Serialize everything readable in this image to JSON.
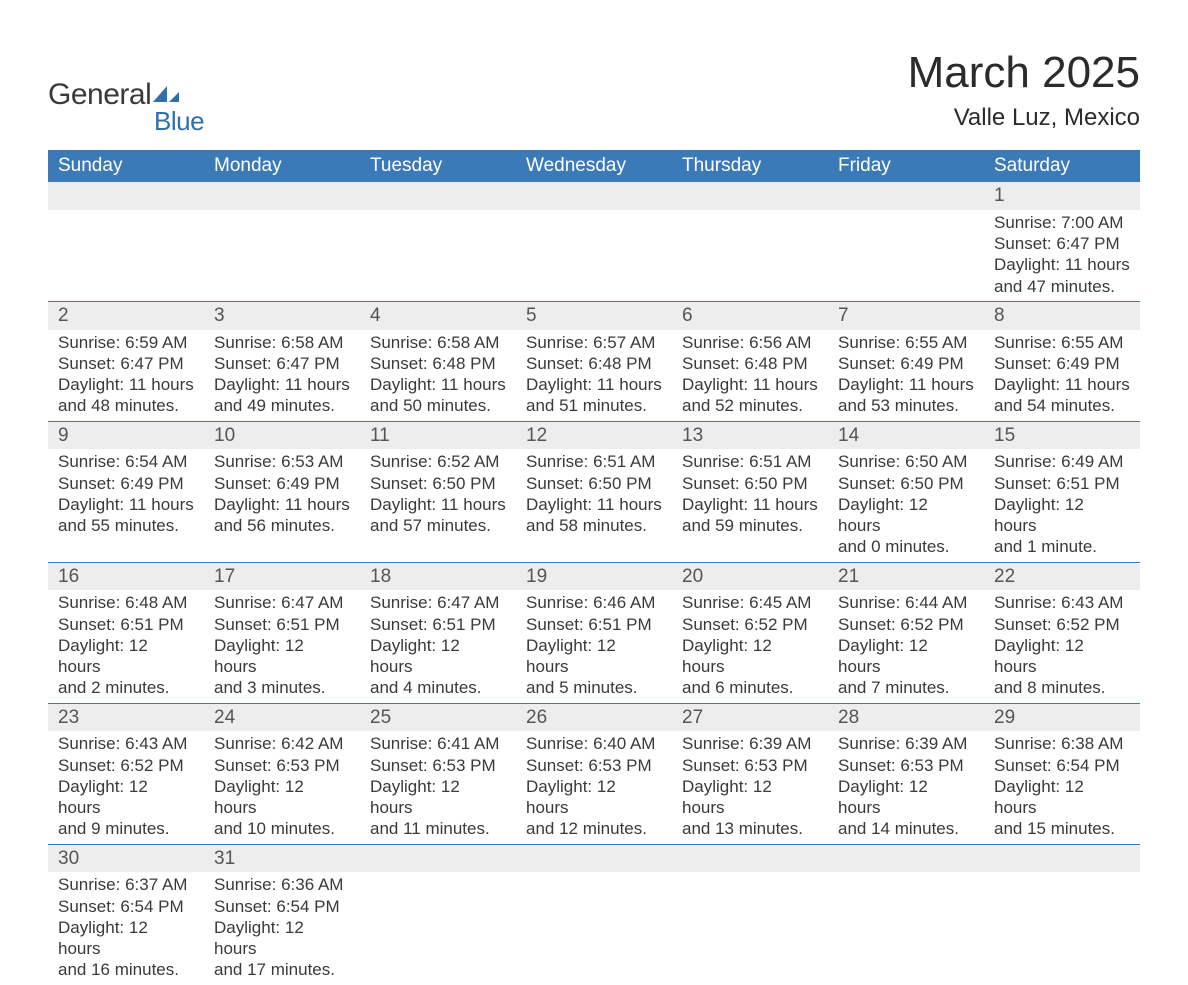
{
  "logo": {
    "text1": "General",
    "text2": "Blue",
    "flag_color": "#2f6fae"
  },
  "title": "March 2025",
  "location": "Valle Luz, Mexico",
  "header_bg": "#3a7ab8",
  "stripe_bg": "#ededed",
  "text_color": "#3a3a3a",
  "day_headers": [
    "Sunday",
    "Monday",
    "Tuesday",
    "Wednesday",
    "Thursday",
    "Friday",
    "Saturday"
  ],
  "weeks": [
    {
      "days": [
        {
          "n": "",
          "lines": [
            "",
            "",
            "",
            ""
          ]
        },
        {
          "n": "",
          "lines": [
            "",
            "",
            "",
            ""
          ]
        },
        {
          "n": "",
          "lines": [
            "",
            "",
            "",
            ""
          ]
        },
        {
          "n": "",
          "lines": [
            "",
            "",
            "",
            ""
          ]
        },
        {
          "n": "",
          "lines": [
            "",
            "",
            "",
            ""
          ]
        },
        {
          "n": "",
          "lines": [
            "",
            "",
            "",
            ""
          ]
        },
        {
          "n": "1",
          "lines": [
            "Sunrise: 7:00 AM",
            "Sunset: 6:47 PM",
            "Daylight: 11 hours",
            "and 47 minutes."
          ]
        }
      ]
    },
    {
      "days": [
        {
          "n": "2",
          "lines": [
            "Sunrise: 6:59 AM",
            "Sunset: 6:47 PM",
            "Daylight: 11 hours",
            "and 48 minutes."
          ]
        },
        {
          "n": "3",
          "lines": [
            "Sunrise: 6:58 AM",
            "Sunset: 6:47 PM",
            "Daylight: 11 hours",
            "and 49 minutes."
          ]
        },
        {
          "n": "4",
          "lines": [
            "Sunrise: 6:58 AM",
            "Sunset: 6:48 PM",
            "Daylight: 11 hours",
            "and 50 minutes."
          ]
        },
        {
          "n": "5",
          "lines": [
            "Sunrise: 6:57 AM",
            "Sunset: 6:48 PM",
            "Daylight: 11 hours",
            "and 51 minutes."
          ]
        },
        {
          "n": "6",
          "lines": [
            "Sunrise: 6:56 AM",
            "Sunset: 6:48 PM",
            "Daylight: 11 hours",
            "and 52 minutes."
          ]
        },
        {
          "n": "7",
          "lines": [
            "Sunrise: 6:55 AM",
            "Sunset: 6:49 PM",
            "Daylight: 11 hours",
            "and 53 minutes."
          ]
        },
        {
          "n": "8",
          "lines": [
            "Sunrise: 6:55 AM",
            "Sunset: 6:49 PM",
            "Daylight: 11 hours",
            "and 54 minutes."
          ]
        }
      ]
    },
    {
      "days": [
        {
          "n": "9",
          "lines": [
            "Sunrise: 6:54 AM",
            "Sunset: 6:49 PM",
            "Daylight: 11 hours",
            "and 55 minutes."
          ]
        },
        {
          "n": "10",
          "lines": [
            "Sunrise: 6:53 AM",
            "Sunset: 6:49 PM",
            "Daylight: 11 hours",
            "and 56 minutes."
          ]
        },
        {
          "n": "11",
          "lines": [
            "Sunrise: 6:52 AM",
            "Sunset: 6:50 PM",
            "Daylight: 11 hours",
            "and 57 minutes."
          ]
        },
        {
          "n": "12",
          "lines": [
            "Sunrise: 6:51 AM",
            "Sunset: 6:50 PM",
            "Daylight: 11 hours",
            "and 58 minutes."
          ]
        },
        {
          "n": "13",
          "lines": [
            "Sunrise: 6:51 AM",
            "Sunset: 6:50 PM",
            "Daylight: 11 hours",
            "and 59 minutes."
          ]
        },
        {
          "n": "14",
          "lines": [
            "Sunrise: 6:50 AM",
            "Sunset: 6:50 PM",
            "Daylight: 12 hours",
            "and 0 minutes."
          ]
        },
        {
          "n": "15",
          "lines": [
            "Sunrise: 6:49 AM",
            "Sunset: 6:51 PM",
            "Daylight: 12 hours",
            "and 1 minute."
          ]
        }
      ]
    },
    {
      "days": [
        {
          "n": "16",
          "lines": [
            "Sunrise: 6:48 AM",
            "Sunset: 6:51 PM",
            "Daylight: 12 hours",
            "and 2 minutes."
          ]
        },
        {
          "n": "17",
          "lines": [
            "Sunrise: 6:47 AM",
            "Sunset: 6:51 PM",
            "Daylight: 12 hours",
            "and 3 minutes."
          ]
        },
        {
          "n": "18",
          "lines": [
            "Sunrise: 6:47 AM",
            "Sunset: 6:51 PM",
            "Daylight: 12 hours",
            "and 4 minutes."
          ]
        },
        {
          "n": "19",
          "lines": [
            "Sunrise: 6:46 AM",
            "Sunset: 6:51 PM",
            "Daylight: 12 hours",
            "and 5 minutes."
          ]
        },
        {
          "n": "20",
          "lines": [
            "Sunrise: 6:45 AM",
            "Sunset: 6:52 PM",
            "Daylight: 12 hours",
            "and 6 minutes."
          ]
        },
        {
          "n": "21",
          "lines": [
            "Sunrise: 6:44 AM",
            "Sunset: 6:52 PM",
            "Daylight: 12 hours",
            "and 7 minutes."
          ]
        },
        {
          "n": "22",
          "lines": [
            "Sunrise: 6:43 AM",
            "Sunset: 6:52 PM",
            "Daylight: 12 hours",
            "and 8 minutes."
          ]
        }
      ]
    },
    {
      "days": [
        {
          "n": "23",
          "lines": [
            "Sunrise: 6:43 AM",
            "Sunset: 6:52 PM",
            "Daylight: 12 hours",
            "and 9 minutes."
          ]
        },
        {
          "n": "24",
          "lines": [
            "Sunrise: 6:42 AM",
            "Sunset: 6:53 PM",
            "Daylight: 12 hours",
            "and 10 minutes."
          ]
        },
        {
          "n": "25",
          "lines": [
            "Sunrise: 6:41 AM",
            "Sunset: 6:53 PM",
            "Daylight: 12 hours",
            "and 11 minutes."
          ]
        },
        {
          "n": "26",
          "lines": [
            "Sunrise: 6:40 AM",
            "Sunset: 6:53 PM",
            "Daylight: 12 hours",
            "and 12 minutes."
          ]
        },
        {
          "n": "27",
          "lines": [
            "Sunrise: 6:39 AM",
            "Sunset: 6:53 PM",
            "Daylight: 12 hours",
            "and 13 minutes."
          ]
        },
        {
          "n": "28",
          "lines": [
            "Sunrise: 6:39 AM",
            "Sunset: 6:53 PM",
            "Daylight: 12 hours",
            "and 14 minutes."
          ]
        },
        {
          "n": "29",
          "lines": [
            "Sunrise: 6:38 AM",
            "Sunset: 6:54 PM",
            "Daylight: 12 hours",
            "and 15 minutes."
          ]
        }
      ]
    },
    {
      "days": [
        {
          "n": "30",
          "lines": [
            "Sunrise: 6:37 AM",
            "Sunset: 6:54 PM",
            "Daylight: 12 hours",
            "and 16 minutes."
          ]
        },
        {
          "n": "31",
          "lines": [
            "Sunrise: 6:36 AM",
            "Sunset: 6:54 PM",
            "Daylight: 12 hours",
            "and 17 minutes."
          ]
        },
        {
          "n": "",
          "lines": [
            "",
            "",
            "",
            ""
          ]
        },
        {
          "n": "",
          "lines": [
            "",
            "",
            "",
            ""
          ]
        },
        {
          "n": "",
          "lines": [
            "",
            "",
            "",
            ""
          ]
        },
        {
          "n": "",
          "lines": [
            "",
            "",
            "",
            ""
          ]
        },
        {
          "n": "",
          "lines": [
            "",
            "",
            "",
            ""
          ]
        }
      ]
    }
  ]
}
